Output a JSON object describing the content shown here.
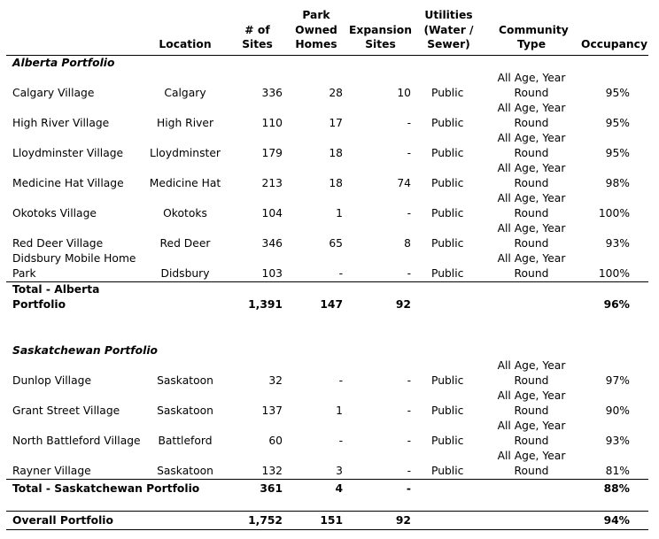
{
  "headers": {
    "location": "Location",
    "sites": "# of Sites",
    "park_owned_homes": "Park Owned Homes",
    "expansion_sites": "Expansion Sites",
    "utilities": "Utilities (Water / Sewer)",
    "community_type": "Community Type",
    "occupancy": "Occupancy"
  },
  "alberta": {
    "label": "Alberta Portfolio",
    "rows": [
      {
        "name": "Calgary Village",
        "location": "Calgary",
        "sites": "336",
        "homes": "28",
        "expansion": "10",
        "utilities": "Public",
        "community": "All Age, Year Round",
        "occupancy": "95%"
      },
      {
        "name": "High River Village",
        "location": "High River",
        "sites": "110",
        "homes": "17",
        "expansion": "-",
        "utilities": "Public",
        "community": "All Age, Year Round",
        "occupancy": "95%"
      },
      {
        "name": "Lloydminster Village",
        "location": "Lloydminster",
        "sites": "179",
        "homes": "18",
        "expansion": "-",
        "utilities": "Public",
        "community": "All Age, Year Round",
        "occupancy": "95%"
      },
      {
        "name": "Medicine Hat Village",
        "location": "Medicine Hat",
        "sites": "213",
        "homes": "18",
        "expansion": "74",
        "utilities": "Public",
        "community": "All Age, Year Round",
        "occupancy": "98%"
      },
      {
        "name": "Okotoks Village",
        "location": "Okotoks",
        "sites": "104",
        "homes": "1",
        "expansion": "-",
        "utilities": "Public",
        "community": "All Age, Year Round",
        "occupancy": "100%"
      },
      {
        "name": "Red Deer Village",
        "location": "Red Deer",
        "sites": "346",
        "homes": "65",
        "expansion": "8",
        "utilities": "Public",
        "community": "All Age, Year Round",
        "occupancy": "93%"
      },
      {
        "name": "Didsbury Mobile Home Park",
        "location": "Didsbury",
        "sites": "103",
        "homes": "-",
        "expansion": "-",
        "utilities": "Public",
        "community": "All Age, Year Round",
        "occupancy": "100%"
      }
    ],
    "total": {
      "name": "Total - Alberta Portfolio",
      "sites": "1,391",
      "homes": "147",
      "expansion": "92",
      "occupancy": "96%"
    }
  },
  "saskatchewan": {
    "label": "Saskatchewan Portfolio",
    "rows": [
      {
        "name": "Dunlop Village",
        "location": "Saskatoon",
        "sites": "32",
        "homes": "-",
        "expansion": "-",
        "utilities": "Public",
        "community": "All Age, Year Round",
        "occupancy": "97%"
      },
      {
        "name": "Grant Street Village",
        "location": "Saskatoon",
        "sites": "137",
        "homes": "1",
        "expansion": "-",
        "utilities": "Public",
        "community": "All Age, Year Round",
        "occupancy": "90%"
      },
      {
        "name": "North Battleford Village",
        "location": "Battleford",
        "sites": "60",
        "homes": "-",
        "expansion": "-",
        "utilities": "Public",
        "community": "All Age, Year Round",
        "occupancy": "93%"
      },
      {
        "name": "Rayner Village",
        "location": "Saskatoon",
        "sites": "132",
        "homes": "3",
        "expansion": "-",
        "utilities": "Public",
        "community": "All Age, Year Round",
        "occupancy": "81%"
      }
    ],
    "total": {
      "name": "Total - Saskatchewan Portfolio",
      "sites": "361",
      "homes": "4",
      "expansion": "-",
      "occupancy": "88%"
    }
  },
  "overall": {
    "name": "Overall Portfolio",
    "sites": "1,752",
    "homes": "151",
    "expansion": "92",
    "occupancy": "94%"
  }
}
